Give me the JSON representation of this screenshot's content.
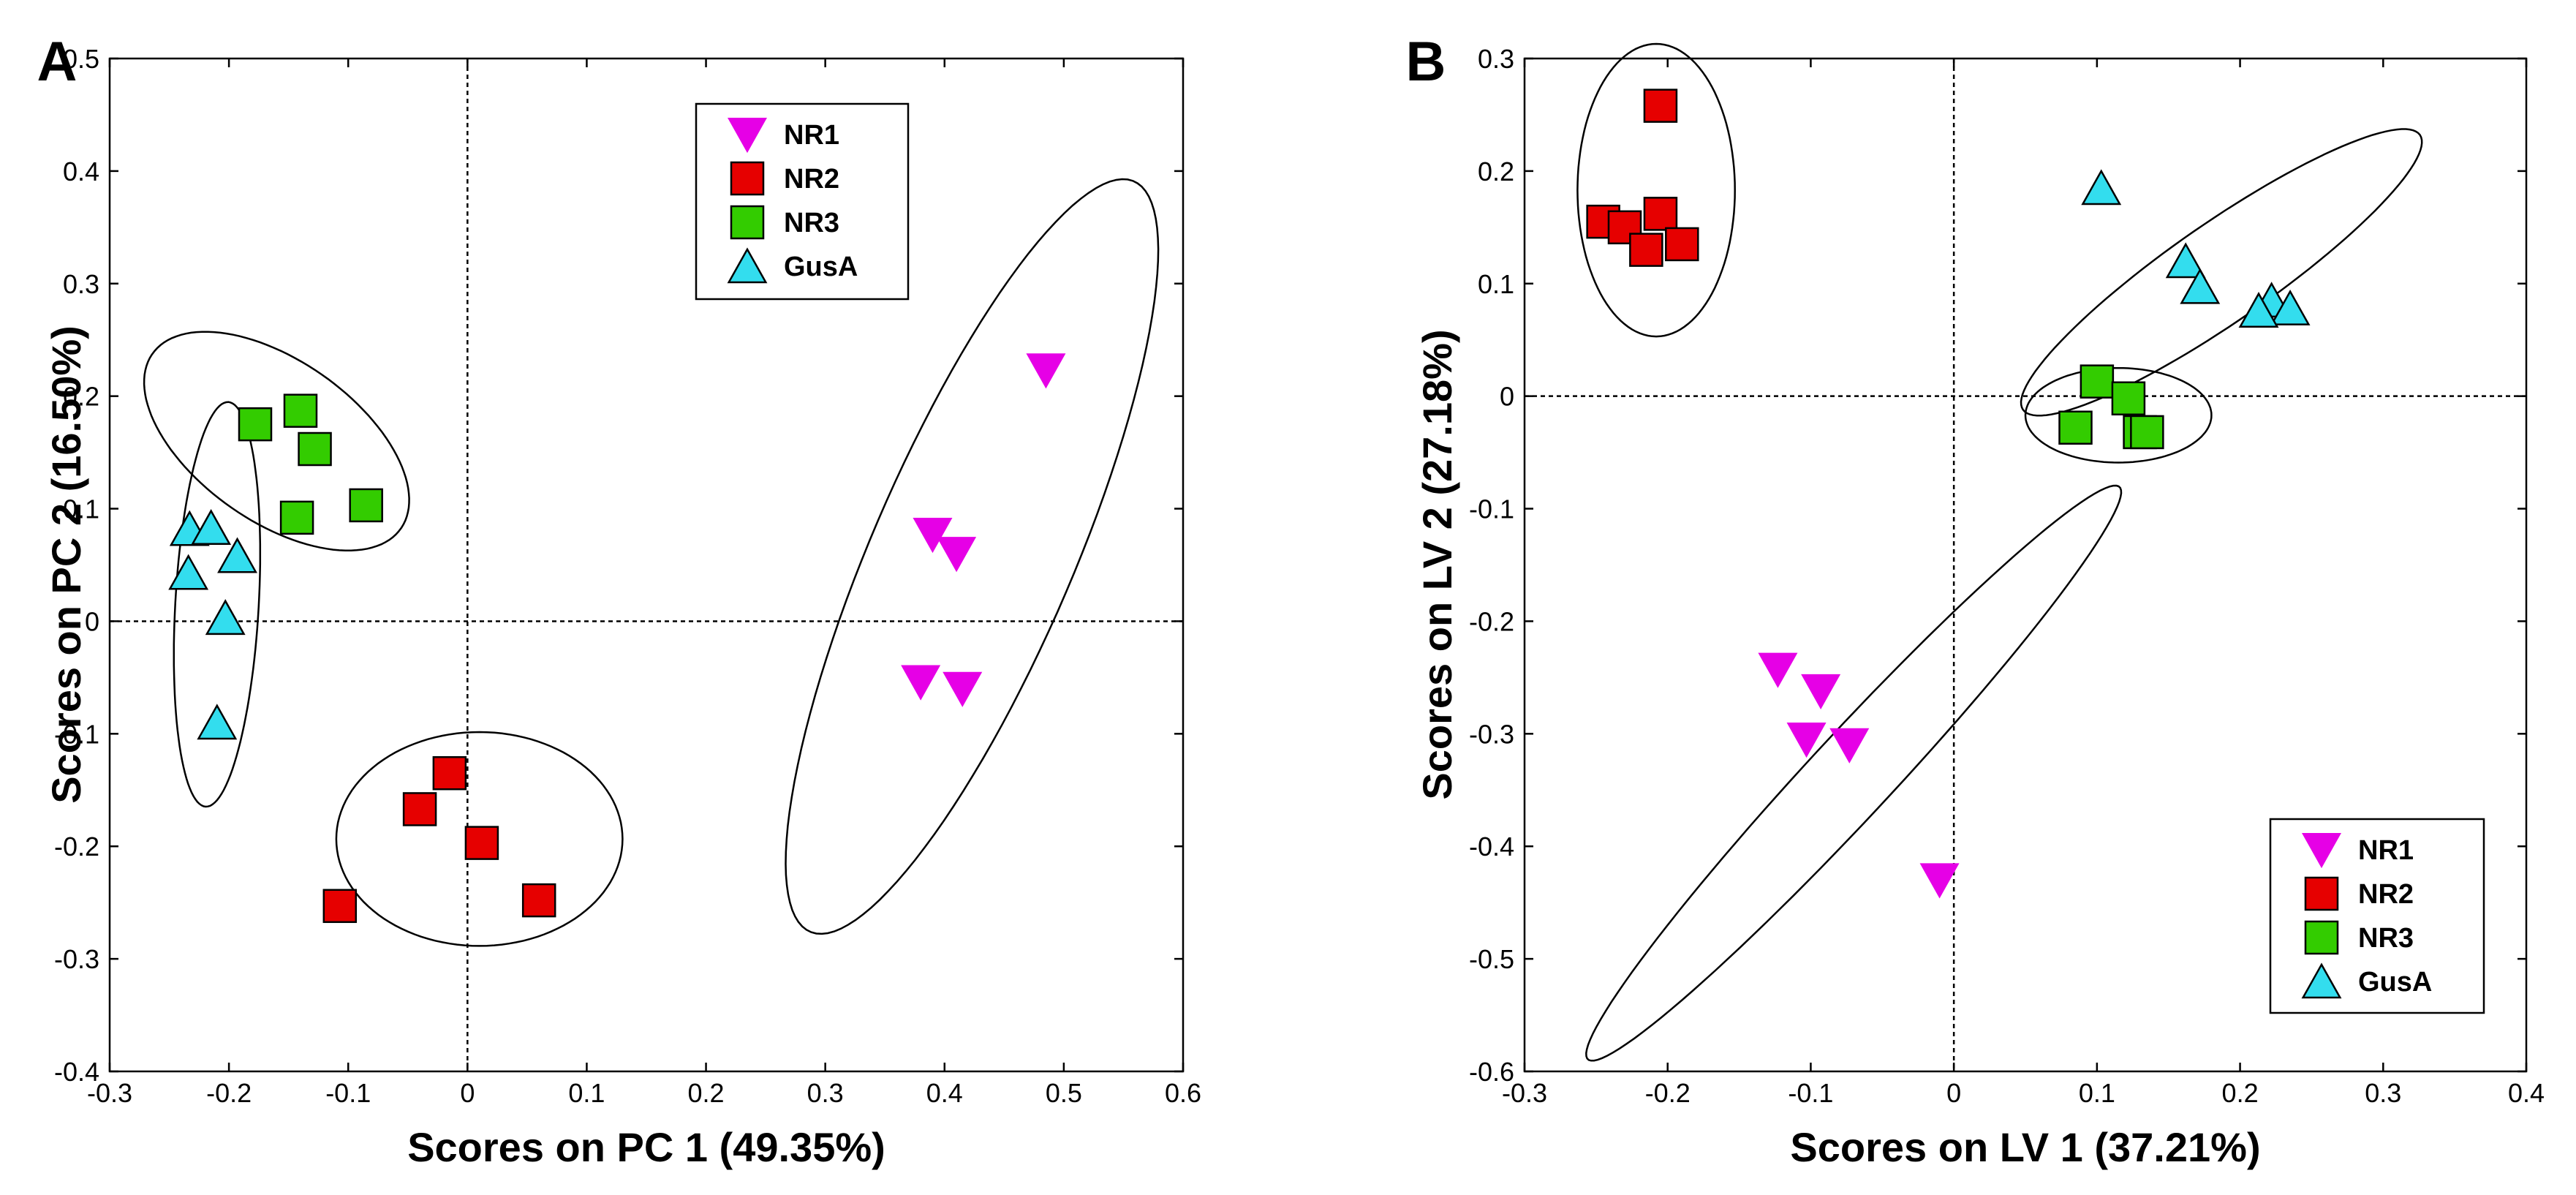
{
  "chart_data": [
    {
      "type": "scatter",
      "panel_label": "A",
      "xlabel": "Scores on PC 1 (49.35%)",
      "ylabel": "Scores on PC 2 (16.50%)",
      "xlim": [
        -0.3,
        0.6
      ],
      "ylim": [
        -0.4,
        0.5
      ],
      "xticks": [
        "-0.3",
        "-0.2",
        "-0.1",
        "0",
        "0.1",
        "0.2",
        "0.3",
        "0.4",
        "0.5",
        "0.6"
      ],
      "yticks": [
        "-0.4",
        "-0.3",
        "-0.2",
        "-0.1",
        "0",
        "0.1",
        "0.2",
        "0.3",
        "0.4",
        "0.5"
      ],
      "legend_position": "top-center",
      "series": [
        {
          "name": "NR1",
          "marker": "triangle-down",
          "color": "#E600E6",
          "points": [
            [
              0.485,
              0.223
            ],
            [
              0.39,
              0.077
            ],
            [
              0.41,
              0.06
            ],
            [
              0.38,
              -0.054
            ],
            [
              0.415,
              -0.06
            ]
          ]
        },
        {
          "name": "NR2",
          "marker": "square",
          "color": "#E60000",
          "points": [
            [
              -0.015,
              -0.135
            ],
            [
              -0.04,
              -0.167
            ],
            [
              0.012,
              -0.197
            ],
            [
              0.06,
              -0.248
            ],
            [
              -0.107,
              -0.253
            ]
          ]
        },
        {
          "name": "NR3",
          "marker": "square",
          "color": "#33CC00",
          "points": [
            [
              -0.14,
              0.187
            ],
            [
              -0.178,
              0.175
            ],
            [
              -0.128,
              0.153
            ],
            [
              -0.085,
              0.103
            ],
            [
              -0.143,
              0.092
            ]
          ]
        },
        {
          "name": "GusA",
          "marker": "triangle-up",
          "color": "#33DDEE",
          "points": [
            [
              -0.233,
              0.082
            ],
            [
              -0.215,
              0.083
            ],
            [
              -0.193,
              0.058
            ],
            [
              -0.234,
              0.043
            ],
            [
              -0.203,
              0.003
            ],
            [
              -0.21,
              -0.09
            ]
          ]
        }
      ],
      "ellipses": [
        {
          "cx": 0.423,
          "cy": 0.0575,
          "rx": 0.36,
          "ry": 0.085,
          "angle_deg": 68
        },
        {
          "cx": 0.01,
          "cy": -0.1935,
          "rx": 0.12,
          "ry": 0.095,
          "angle_deg": 0
        },
        {
          "cx": -0.16,
          "cy": 0.16,
          "rx": 0.13,
          "ry": 0.07,
          "angle_deg": -38
        },
        {
          "cx": -0.21,
          "cy": 0.015,
          "rx": 0.18,
          "ry": 0.035,
          "angle_deg": 87
        }
      ]
    },
    {
      "type": "scatter",
      "panel_label": "B",
      "xlabel": "Scores on LV 1 (37.21%)",
      "ylabel": "Scores on LV 2 (27.18%)",
      "xlim": [
        -0.3,
        0.4
      ],
      "ylim": [
        -0.6,
        0.3
      ],
      "xticks": [
        "-0.3",
        "-0.2",
        "-0.1",
        "0",
        "0.1",
        "0.2",
        "0.3",
        "0.4"
      ],
      "yticks": [
        "-0.6",
        "-0.5",
        "-0.4",
        "-0.3",
        "-0.2",
        "-0.1",
        "0",
        "0.1",
        "0.2",
        "0.3"
      ],
      "legend_position": "bottom-right",
      "series": [
        {
          "name": "NR1",
          "marker": "triangle-down",
          "color": "#E600E6",
          "points": [
            [
              -0.123,
              -0.243
            ],
            [
              -0.093,
              -0.262
            ],
            [
              -0.103,
              -0.305
            ],
            [
              -0.073,
              -0.31
            ],
            [
              -0.01,
              -0.43
            ]
          ]
        },
        {
          "name": "NR2",
          "marker": "square",
          "color": "#E60000",
          "points": [
            [
              -0.205,
              0.258
            ],
            [
              -0.245,
              0.155
            ],
            [
              -0.23,
              0.15
            ],
            [
              -0.205,
              0.162
            ],
            [
              -0.215,
              0.13
            ],
            [
              -0.19,
              0.135
            ]
          ]
        },
        {
          "name": "NR3",
          "marker": "square",
          "color": "#33CC00",
          "points": [
            [
              0.1,
              0.013
            ],
            [
              0.122,
              -0.002
            ],
            [
              0.085,
              -0.028
            ],
            [
              0.13,
              -0.032
            ],
            [
              0.135,
              -0.032
            ]
          ]
        },
        {
          "name": "GusA",
          "marker": "triangle-up",
          "color": "#33DDEE",
          "points": [
            [
              0.103,
              0.185
            ],
            [
              0.162,
              0.12
            ],
            [
              0.172,
              0.097
            ],
            [
              0.222,
              0.085
            ],
            [
              0.235,
              0.078
            ],
            [
              0.213,
              0.076
            ]
          ]
        }
      ],
      "ellipses": [
        {
          "cx": -0.208,
          "cy": 0.183,
          "rx": 0.13,
          "ry": 0.055,
          "angle_deg": 90
        },
        {
          "cx": 0.187,
          "cy": 0.11,
          "rx": 0.185,
          "ry": 0.04,
          "angle_deg": 42
        },
        {
          "cx": 0.115,
          "cy": -0.017,
          "rx": 0.065,
          "ry": 0.042,
          "angle_deg": 0
        },
        {
          "cx": -0.07,
          "cy": -0.335,
          "rx": 0.315,
          "ry": 0.032,
          "angle_deg": 54
        }
      ]
    }
  ]
}
